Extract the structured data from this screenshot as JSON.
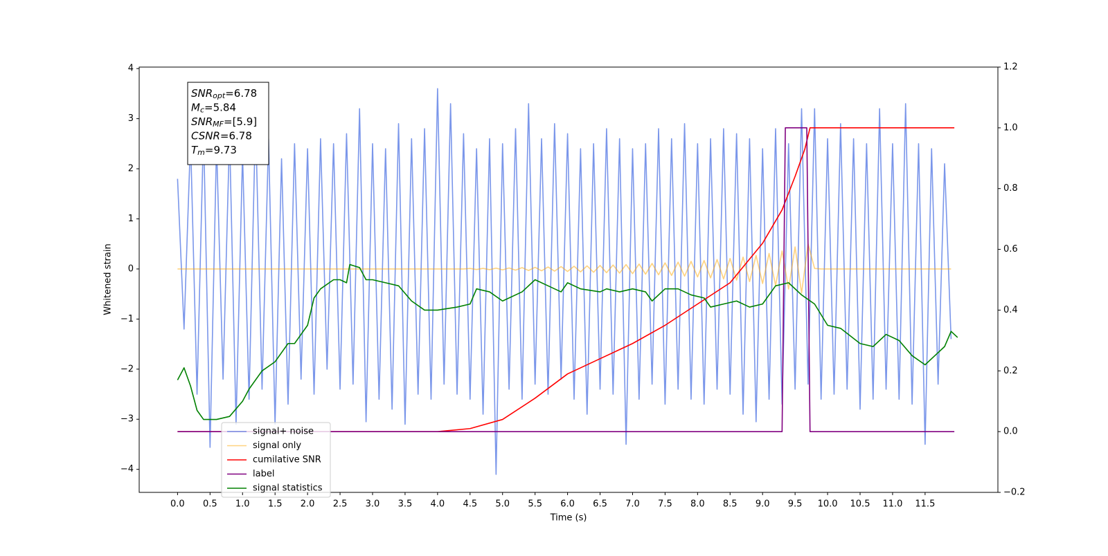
{
  "chart_data": {
    "type": "line",
    "x_label": "Time (s)",
    "y_label": "Whitened strain",
    "xlim": [
      -0.59,
      12.62
    ],
    "ylim": [
      -4.46,
      4.03
    ],
    "y2lim": [
      -0.2,
      1.2
    ],
    "xticks": [
      {
        "value": 0,
        "label": "0.0"
      },
      {
        "value": 0.5,
        "label": "0.5"
      },
      {
        "value": 1,
        "label": "1.0"
      },
      {
        "value": 1.5,
        "label": "1.5"
      },
      {
        "value": 2,
        "label": "2.0"
      },
      {
        "value": 2.5,
        "label": "2.5"
      },
      {
        "value": 3,
        "label": "3.0"
      },
      {
        "value": 3.5,
        "label": "3.5"
      },
      {
        "value": 4,
        "label": "4.0"
      },
      {
        "value": 4.5,
        "label": "4.5"
      },
      {
        "value": 5,
        "label": "5.0"
      },
      {
        "value": 5.5,
        "label": "5.5"
      },
      {
        "value": 6,
        "label": "6.0"
      },
      {
        "value": 6.5,
        "label": "6.5"
      },
      {
        "value": 7,
        "label": "7.0"
      },
      {
        "value": 7.5,
        "label": "7.5"
      },
      {
        "value": 8,
        "label": "8.0"
      },
      {
        "value": 8.5,
        "label": "8.5"
      },
      {
        "value": 9,
        "label": "9.0"
      },
      {
        "value": 9.5,
        "label": "9.5"
      },
      {
        "value": 10,
        "label": "10.0"
      },
      {
        "value": 10.5,
        "label": "10.5"
      },
      {
        "value": 11,
        "label": "11.0"
      },
      {
        "value": 11.5,
        "label": "11.5"
      }
    ],
    "yticks": [
      {
        "value": -4,
        "label": "−4"
      },
      {
        "value": -3,
        "label": "−3"
      },
      {
        "value": -2,
        "label": "−2"
      },
      {
        "value": -1,
        "label": "−1"
      },
      0,
      1,
      2,
      3,
      4
    ],
    "y2ticks": [
      {
        "value": -0.2,
        "label": "−0.2"
      },
      {
        "value": 0,
        "label": "0.0"
      },
      0.2,
      0.4,
      0.6,
      0.8,
      {
        "value": 1,
        "label": "1.0"
      },
      1.2
    ],
    "annotation": [
      {
        "text": "SNR",
        "sub": "opt",
        "rest": "=6.78"
      },
      {
        "text": "M",
        "sub": "c",
        "rest": "=5.84"
      },
      {
        "text": "SNR",
        "sub": "MF",
        "rest": "=[5.9]"
      },
      {
        "text": "CSNR",
        "sub": null,
        "rest": "=6.78"
      },
      {
        "text": "T",
        "sub": "m",
        "rest": "=9.73"
      }
    ],
    "x": [
      0,
      0.1,
      0.2,
      0.3,
      0.4,
      0.5,
      0.6,
      0.7,
      0.8,
      0.9,
      1,
      1.1,
      1.2,
      1.3,
      1.4,
      1.5,
      1.6,
      1.7,
      1.8,
      1.9,
      2,
      2.1,
      2.2,
      2.3,
      2.4,
      2.5,
      2.6,
      2.7,
      2.8,
      2.9,
      3,
      3.1,
      3.2,
      3.3,
      3.4,
      3.5,
      3.6,
      3.7,
      3.8,
      3.9,
      4,
      4.1,
      4.2,
      4.3,
      4.4,
      4.5,
      4.6,
      4.7,
      4.8,
      4.9,
      5,
      5.1,
      5.2,
      5.3,
      5.4,
      5.5,
      5.6,
      5.7,
      5.8,
      5.9,
      6,
      6.1,
      6.2,
      6.3,
      6.4,
      6.5,
      6.6,
      6.7,
      6.8,
      6.9,
      7,
      7.1,
      7.2,
      7.3,
      7.4,
      7.5,
      7.6,
      7.7,
      7.8,
      7.9,
      8,
      8.1,
      8.2,
      8.3,
      8.4,
      8.5,
      8.6,
      8.7,
      8.8,
      8.9,
      9,
      9.1,
      9.2,
      9.3,
      9.4,
      9.5,
      9.6,
      9.7,
      9.8,
      9.9,
      10,
      10.1,
      10.2,
      10.3,
      10.4,
      10.5,
      10.6,
      10.7,
      10.8,
      10.9,
      11,
      11.1,
      11.2,
      11.3,
      11.4,
      11.5,
      11.6,
      11.7,
      11.8,
      11.9
    ],
    "series": [
      {
        "name": "signal+ noise",
        "color": "#4169e1",
        "alpha": 0.7,
        "axis": "y",
        "values": [
          1.8,
          -1.2,
          2.6,
          -2.5,
          2.8,
          -3.56,
          2.5,
          -2.2,
          2.7,
          -3.1,
          2.3,
          -2.6,
          3.0,
          -2.4,
          2.6,
          -3.1,
          2.2,
          -2.7,
          2.5,
          -2.2,
          2.4,
          -2.5,
          2.6,
          -2.0,
          2.5,
          -2.4,
          2.7,
          -2.3,
          3.2,
          -3.05,
          2.5,
          -2.6,
          2.4,
          -2.8,
          2.9,
          -3.1,
          2.6,
          -2.5,
          2.8,
          -2.6,
          3.6,
          -2.3,
          3.3,
          -2.5,
          2.7,
          -2.6,
          2.4,
          -2.9,
          2.6,
          -4.1,
          2.5,
          -2.4,
          2.8,
          -2.6,
          3.3,
          -2.3,
          2.6,
          -2.5,
          2.9,
          -2.2,
          2.7,
          -2.6,
          2.4,
          -2.9,
          2.5,
          -2.4,
          2.8,
          -2.5,
          2.6,
          -3.5,
          2.4,
          -2.6,
          2.5,
          -2.3,
          2.8,
          -2.7,
          2.6,
          -2.4,
          2.9,
          -2.6,
          2.5,
          -2.7,
          2.6,
          -2.4,
          2.8,
          -2.5,
          2.7,
          -2.9,
          2.6,
          -3.05,
          2.4,
          -2.6,
          2.8,
          -2.7,
          2.5,
          -2.4,
          3.2,
          -2.3,
          3.2,
          -2.6,
          2.6,
          -2.5,
          2.9,
          -2.4,
          2.6,
          -2.8,
          2.5,
          -2.6,
          3.2,
          -2.4,
          2.5,
          -2.6,
          3.3,
          -2.7,
          2.5,
          -3.5,
          2.4,
          -2.3,
          2.1,
          -1.4
        ]
      },
      {
        "name": "signal only",
        "color": "#ffa500",
        "alpha": 0.5,
        "axis": "y",
        "values": [
          0,
          0,
          0,
          0,
          0,
          0,
          0,
          0,
          0,
          0,
          0,
          0,
          0,
          0,
          0,
          0,
          0,
          0,
          0,
          0,
          0,
          0,
          0,
          0,
          0,
          0,
          0,
          0,
          0,
          0,
          0,
          0,
          0,
          0,
          0,
          0,
          0,
          0,
          0,
          0,
          0,
          0,
          0,
          0,
          0,
          0.01,
          -0.01,
          0.012,
          -0.014,
          0.016,
          -0.018,
          0.02,
          -0.023,
          0.026,
          -0.03,
          0.033,
          -0.036,
          0.04,
          -0.043,
          0.047,
          -0.05,
          0.054,
          -0.058,
          0.062,
          -0.066,
          0.07,
          -0.074,
          0.078,
          -0.083,
          0.088,
          -0.093,
          0.098,
          -0.104,
          0.11,
          -0.116,
          0.122,
          -0.129,
          0.136,
          -0.143,
          0.151,
          -0.159,
          0.168,
          -0.178,
          0.188,
          -0.199,
          0.21,
          -0.223,
          0.237,
          -0.252,
          0.27,
          -0.29,
          0.31,
          -0.33,
          0.36,
          -0.4,
          0.44,
          -0.48,
          0.5,
          0.01,
          0,
          0,
          0,
          0,
          0,
          0,
          0,
          0,
          0,
          0,
          0,
          0,
          0,
          0,
          0,
          0,
          0,
          0,
          0,
          0,
          0
        ]
      },
      {
        "name": "cumilative SNR",
        "color": "#ff0000",
        "alpha": 1,
        "axis": "y2",
        "x": [
          0,
          4,
          4.5,
          5,
          5.5,
          6,
          6.5,
          7,
          7.5,
          8,
          8.5,
          9,
          9.3,
          9.5,
          9.65,
          9.73,
          11.95
        ],
        "values": [
          0,
          0,
          0.01,
          0.04,
          0.11,
          0.19,
          0.24,
          0.29,
          0.35,
          0.42,
          0.49,
          0.62,
          0.73,
          0.84,
          0.93,
          1,
          1
        ]
      },
      {
        "name": "label",
        "color": "#800080",
        "alpha": 1,
        "axis": "y2",
        "x": [
          0,
          9.3,
          9.35,
          9.68,
          9.73,
          11.95
        ],
        "values": [
          0,
          0,
          1,
          1,
          0,
          0
        ]
      },
      {
        "name": "signal statistics",
        "color": "#008000",
        "alpha": 1,
        "axis": "y2",
        "x": [
          0,
          0.1,
          0.2,
          0.3,
          0.4,
          0.6,
          0.8,
          1,
          1.1,
          1.3,
          1.5,
          1.7,
          1.8,
          1.9,
          2,
          2.1,
          2.2,
          2.4,
          2.5,
          2.6,
          2.65,
          2.8,
          2.9,
          3,
          3.2,
          3.4,
          3.6,
          3.8,
          4,
          4.3,
          4.5,
          4.6,
          4.8,
          5,
          5.3,
          5.5,
          5.7,
          5.9,
          6,
          6.2,
          6.5,
          6.6,
          6.8,
          7,
          7.2,
          7.3,
          7.5,
          7.7,
          7.9,
          8.1,
          8.2,
          8.4,
          8.6,
          8.8,
          9,
          9.2,
          9.4,
          9.6,
          9.8,
          10,
          10.2,
          10.5,
          10.7,
          10.9,
          11.1,
          11.3,
          11.5,
          11.6,
          11.8,
          11.9,
          12
        ],
        "values": [
          0.17,
          0.21,
          0.15,
          0.07,
          0.04,
          0.04,
          0.05,
          0.1,
          0.14,
          0.2,
          0.23,
          0.29,
          0.29,
          0.32,
          0.35,
          0.44,
          0.47,
          0.5,
          0.5,
          0.49,
          0.55,
          0.54,
          0.5,
          0.5,
          0.49,
          0.48,
          0.43,
          0.4,
          0.4,
          0.41,
          0.42,
          0.47,
          0.46,
          0.43,
          0.46,
          0.5,
          0.48,
          0.46,
          0.49,
          0.47,
          0.46,
          0.47,
          0.46,
          0.47,
          0.46,
          0.43,
          0.47,
          0.47,
          0.45,
          0.44,
          0.41,
          0.42,
          0.43,
          0.41,
          0.42,
          0.48,
          0.49,
          0.45,
          0.42,
          0.35,
          0.34,
          0.29,
          0.28,
          0.32,
          0.3,
          0.25,
          0.22,
          0.24,
          0.28,
          0.33,
          0.31
        ]
      }
    ]
  }
}
